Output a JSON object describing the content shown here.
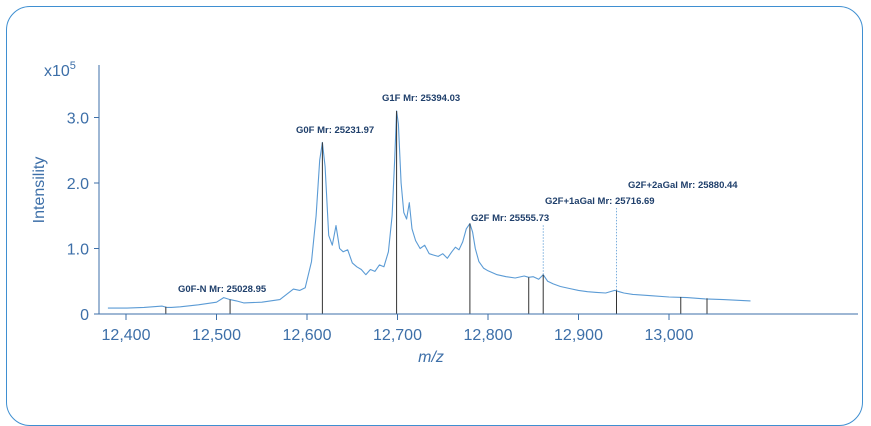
{
  "chart_data": {
    "type": "line",
    "title": "",
    "xlabel": "m/z",
    "ylabel": "Intensility",
    "multiplier_base": "x10",
    "multiplier_exp": "5",
    "xlim": [
      12380,
      13090
    ],
    "ylim": [
      0,
      3.35
    ],
    "xticks": [
      {
        "value": 12400,
        "label": "12,400"
      },
      {
        "value": 12500,
        "label": "12,500"
      },
      {
        "value": 12600,
        "label": "12,600"
      },
      {
        "value": 12700,
        "label": "12,700"
      },
      {
        "value": 12800,
        "label": "12,800"
      },
      {
        "value": 12900,
        "label": "12,900"
      },
      {
        "value": 13000,
        "label": "13,000"
      }
    ],
    "yticks": [
      {
        "value": 0,
        "label": "0"
      },
      {
        "value": 1.0,
        "label": "1.0"
      },
      {
        "value": 2.0,
        "label": "2.0"
      },
      {
        "value": 3.0,
        "label": "3.0"
      }
    ],
    "grid": false,
    "line_color": "#5b9bd5",
    "stick_color": "#333333",
    "axis_color": "#3d6fa8",
    "spectrum": {
      "x": [
        12380,
        12400,
        12420,
        12440,
        12445,
        12450,
        12460,
        12480,
        12500,
        12508,
        12515,
        12522,
        12530,
        12550,
        12570,
        12585,
        12592,
        12598,
        12605,
        12610,
        12614,
        12617,
        12620,
        12624,
        12628,
        12632,
        12636,
        12640,
        12645,
        12650,
        12655,
        12660,
        12665,
        12670,
        12675,
        12680,
        12685,
        12690,
        12694,
        12697,
        12699,
        12701,
        12704,
        12707,
        12710,
        12713,
        12716,
        12720,
        12725,
        12730,
        12735,
        12740,
        12745,
        12750,
        12755,
        12760,
        12764,
        12768,
        12772,
        12776,
        12780,
        12783,
        12786,
        12790,
        12795,
        12800,
        12810,
        12820,
        12830,
        12840,
        12845,
        12850,
        12856,
        12861,
        12866,
        12872,
        12880,
        12890,
        12900,
        12910,
        12920,
        12930,
        12940,
        12945,
        12950,
        12960,
        12980,
        13000,
        13020,
        13040,
        13060,
        13090
      ],
      "y": [
        0.09,
        0.09,
        0.1,
        0.12,
        0.1,
        0.1,
        0.11,
        0.14,
        0.18,
        0.25,
        0.22,
        0.2,
        0.17,
        0.18,
        0.22,
        0.38,
        0.36,
        0.4,
        0.8,
        1.5,
        2.35,
        2.62,
        2.25,
        1.2,
        1.05,
        1.35,
        1.0,
        0.95,
        0.98,
        0.78,
        0.72,
        0.68,
        0.6,
        0.68,
        0.65,
        0.75,
        0.72,
        0.95,
        1.5,
        2.4,
        3.1,
        2.9,
        2.0,
        1.55,
        1.45,
        1.7,
        1.3,
        1.12,
        1.0,
        1.05,
        0.92,
        0.9,
        0.88,
        0.92,
        0.85,
        0.95,
        1.02,
        0.98,
        1.1,
        1.3,
        1.38,
        1.25,
        1.0,
        0.8,
        0.7,
        0.66,
        0.6,
        0.57,
        0.55,
        0.58,
        0.56,
        0.57,
        0.53,
        0.6,
        0.5,
        0.46,
        0.42,
        0.39,
        0.36,
        0.34,
        0.33,
        0.32,
        0.36,
        0.34,
        0.32,
        0.3,
        0.28,
        0.26,
        0.25,
        0.23,
        0.22,
        0.2
      ]
    },
    "annotated_peaks": [
      {
        "label": "G0F-N Mr: 25028.95",
        "x": 12515,
        "y": 0.22
      },
      {
        "label": "G0F Mr: 25231.97",
        "x": 12617,
        "y": 2.62
      },
      {
        "label": "G1F Mr: 25394.03",
        "x": 12699,
        "y": 3.1
      },
      {
        "label": "G2F Mr: 25555.73",
        "x": 12780,
        "y": 1.38
      },
      {
        "label": "G2F+1aGal Mr: 25716.69",
        "x": 12861,
        "y": 0.6
      },
      {
        "label": "G2F+2aGal Mr: 25880.44",
        "x": 12942,
        "y": 0.36
      }
    ],
    "unlabeled_sticks": [
      {
        "x": 12444,
        "y": 0.11
      },
      {
        "x": 12845,
        "y": 0.56
      },
      {
        "x": 13013,
        "y": 0.26
      },
      {
        "x": 13042,
        "y": 0.24
      }
    ]
  }
}
